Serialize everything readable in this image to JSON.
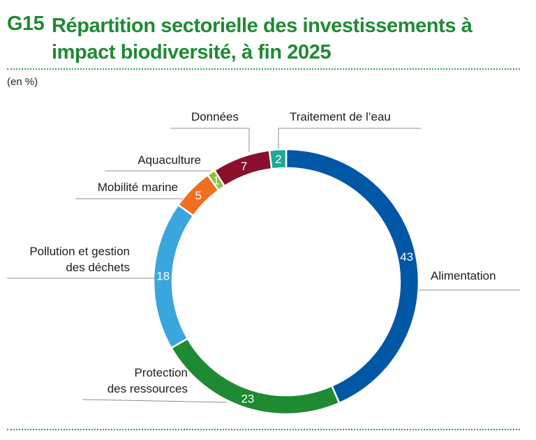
{
  "header": {
    "code": "G15",
    "title": "Répartition sectorielle des investissements à impact biodiversité, à fin 2025"
  },
  "unit": "(en %)",
  "chart_data": {
    "type": "pie",
    "donut": true,
    "categories": [
      "Alimentation",
      "Protection des ressources",
      "Pollution et gestion des déchets",
      "Mobilité marine",
      "Aquaculture",
      "Données",
      "Traitement de l’eau"
    ],
    "values": [
      43,
      23,
      18,
      5,
      1,
      7,
      2
    ],
    "value_labels": [
      "43",
      "23",
      "18",
      "5",
      "1",
      "7",
      "2"
    ],
    "colors": [
      "#0057a6",
      "#1e8a32",
      "#3aa6de",
      "#f07020",
      "#8dc43c",
      "#8a0f2d",
      "#1aa99a"
    ],
    "category_labels": [
      [
        "Alimentation"
      ],
      [
        "Protection",
        "des ressources"
      ],
      [
        "Pollution et gestion",
        "des déchets"
      ],
      [
        "Mobilité marine"
      ],
      [
        "Aquaculture"
      ],
      [
        "Données"
      ],
      [
        "Traitement de l’eau"
      ]
    ]
  }
}
